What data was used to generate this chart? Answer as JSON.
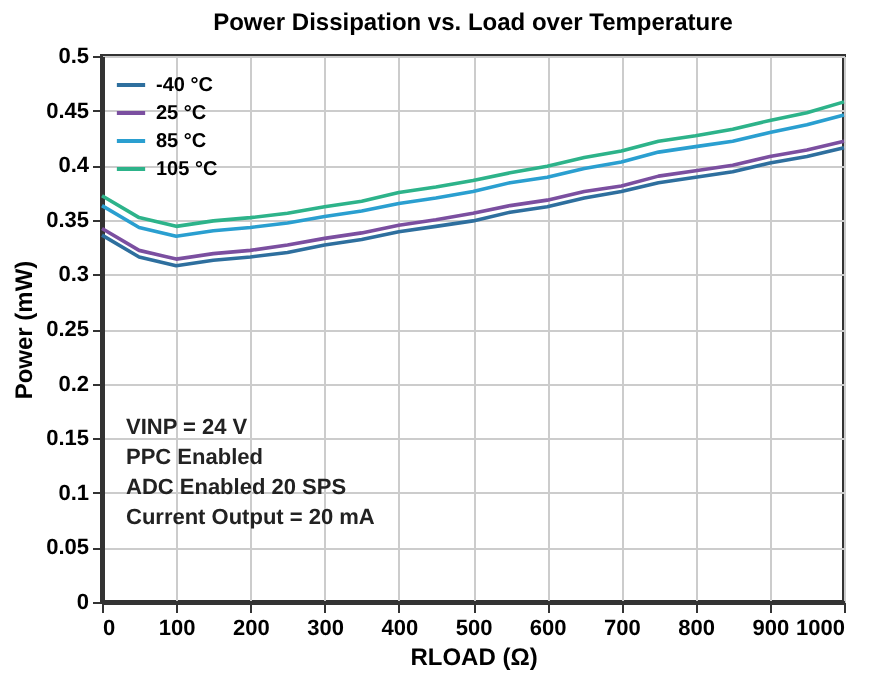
{
  "chart_data": {
    "type": "line",
    "title": "Power Dissipation vs. Load over Temperature",
    "xlabel": "RLOAD (Ω)",
    "ylabel": "Power (mW)",
    "x": [
      0,
      50,
      100,
      150,
      200,
      250,
      300,
      350,
      400,
      450,
      500,
      550,
      600,
      650,
      700,
      750,
      800,
      850,
      900,
      950,
      1000
    ],
    "series": [
      {
        "name": "-40 °C",
        "color": "#2e6f9e",
        "values": [
          0.336,
          0.316,
          0.308,
          0.313,
          0.316,
          0.32,
          0.327,
          0.332,
          0.339,
          0.344,
          0.349,
          0.357,
          0.362,
          0.37,
          0.376,
          0.384,
          0.389,
          0.394,
          0.402,
          0.408,
          0.416
        ]
      },
      {
        "name": "25 °C",
        "color": "#7b4fa0",
        "values": [
          0.342,
          0.322,
          0.314,
          0.319,
          0.322,
          0.327,
          0.333,
          0.338,
          0.345,
          0.35,
          0.356,
          0.363,
          0.368,
          0.376,
          0.381,
          0.39,
          0.395,
          0.4,
          0.408,
          0.414,
          0.422
        ]
      },
      {
        "name": "85 °C",
        "color": "#2a9fd0",
        "values": [
          0.363,
          0.343,
          0.335,
          0.34,
          0.343,
          0.347,
          0.353,
          0.358,
          0.365,
          0.37,
          0.376,
          0.384,
          0.389,
          0.397,
          0.403,
          0.412,
          0.417,
          0.422,
          0.43,
          0.437,
          0.446
        ]
      },
      {
        "name": "105 °C",
        "color": "#2db38a",
        "values": [
          0.372,
          0.352,
          0.344,
          0.349,
          0.352,
          0.356,
          0.362,
          0.367,
          0.375,
          0.38,
          0.386,
          0.393,
          0.399,
          0.407,
          0.413,
          0.422,
          0.427,
          0.433,
          0.441,
          0.448,
          0.458
        ]
      }
    ],
    "xlim": [
      0,
      1000
    ],
    "xticks": [
      0,
      100,
      200,
      300,
      400,
      500,
      600,
      700,
      800,
      900,
      1000
    ],
    "ylim": [
      0,
      0.5
    ],
    "yticks": [
      0,
      0.05,
      0.1,
      0.15,
      0.2,
      0.25,
      0.3,
      0.35,
      0.4,
      0.45,
      0.5
    ],
    "grid": true,
    "legend": "top left",
    "marker": "none",
    "line_style": "solid",
    "annotations": [
      "VINP = 24 V",
      "PPC Enabled",
      "ADC Enabled 20 SPS",
      "Current Output = 20 mA"
    ]
  }
}
